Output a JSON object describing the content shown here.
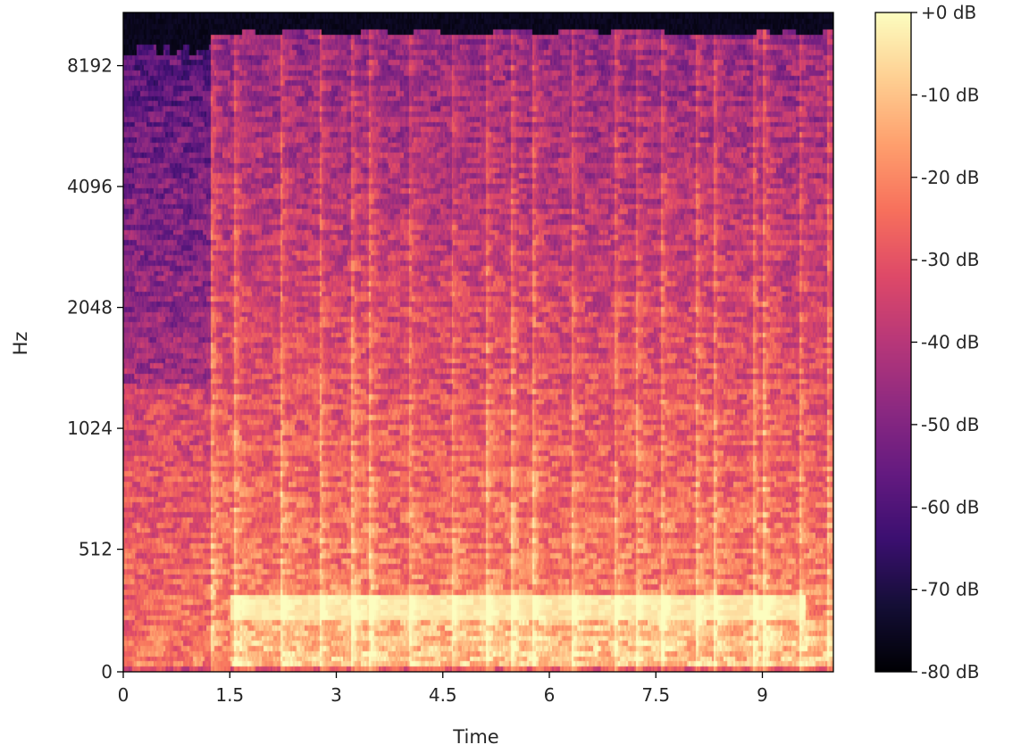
{
  "chart_data": {
    "type": "heatmap",
    "subtype": "mel spectrogram",
    "xlabel": "Time",
    "ylabel": "Hz",
    "xlim": [
      0,
      10.0
    ],
    "ylim": [
      0,
      11025
    ],
    "y_scale": "mel",
    "x_ticks": [
      0,
      1.5,
      3,
      4.5,
      6,
      7.5,
      9
    ],
    "x_tick_labels": [
      "0",
      "1.5",
      "3",
      "4.5",
      "6",
      "7.5",
      "9"
    ],
    "y_ticks": [
      0,
      512,
      1024,
      2048,
      4096,
      8192
    ],
    "y_tick_labels": [
      "0",
      "512",
      "1024",
      "2048",
      "4096",
      "8192"
    ],
    "colorbar": {
      "colormap": "magma",
      "clim": [
        -80,
        0
      ],
      "ticks": [
        0,
        -10,
        -20,
        -30,
        -40,
        -50,
        -60,
        -70,
        -80
      ],
      "tick_labels": [
        "+0 dB",
        "-10 dB",
        "-20 dB",
        "-30 dB",
        "-40 dB",
        "-50 dB",
        "-60 dB",
        "-70 dB",
        "-80 dB"
      ],
      "stops": [
        "#000004",
        "#140e36",
        "#3b0f70",
        "#641a80",
        "#8c2981",
        "#b73779",
        "#de4968",
        "#f7705c",
        "#fe9f6d",
        "#fecf92",
        "#fcfdbf"
      ]
    },
    "grid": false
  }
}
